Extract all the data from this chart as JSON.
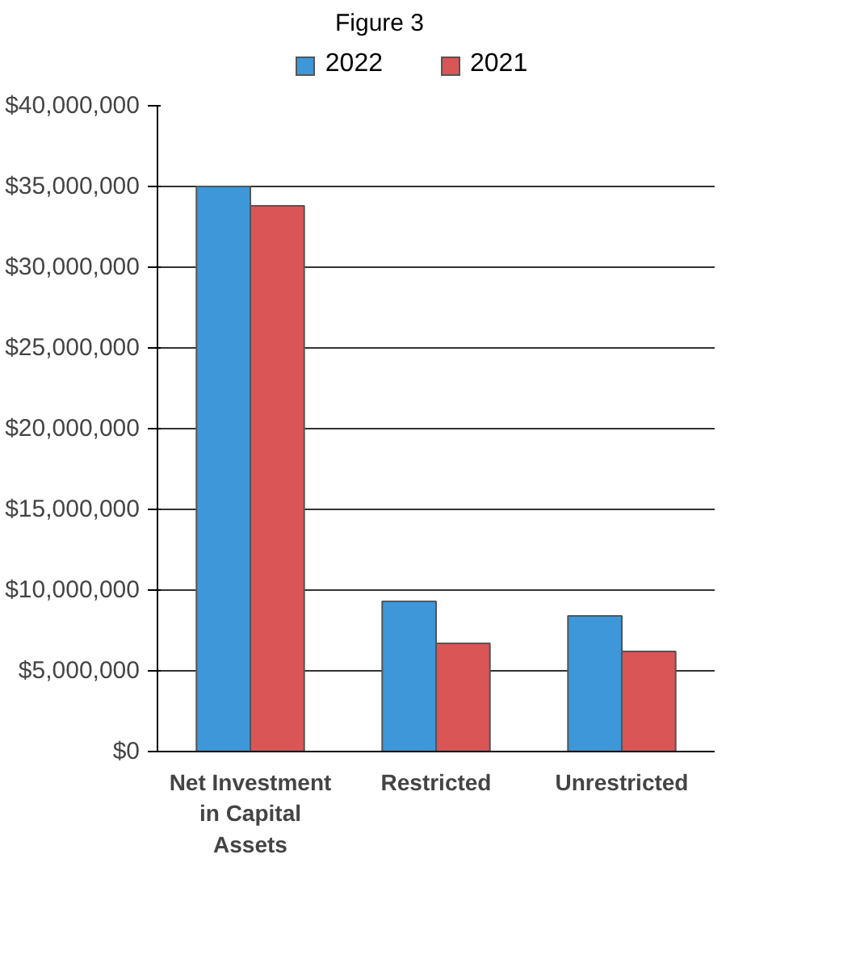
{
  "chart_data": {
    "type": "bar",
    "title": "Figure 3",
    "categories": [
      "Net Investment in Capital Assets",
      "Restricted",
      "Unrestricted"
    ],
    "series": [
      {
        "name": "2022",
        "color": "#3d97d8",
        "values": [
          35000000,
          9300000,
          8400000
        ]
      },
      {
        "name": "2021",
        "color": "#d95556",
        "values": [
          33800000,
          6700000,
          6200000
        ]
      }
    ],
    "ylim": [
      0,
      40000000
    ],
    "yticks": [
      {
        "value": 0,
        "label": "$0"
      },
      {
        "value": 5000000,
        "label": "$5,000,000"
      },
      {
        "value": 10000000,
        "label": "$10,000,000"
      },
      {
        "value": 15000000,
        "label": "$15,000,000"
      },
      {
        "value": 20000000,
        "label": "$20,000,000"
      },
      {
        "value": 25000000,
        "label": "$25,000,000"
      },
      {
        "value": 30000000,
        "label": "$30,000,000"
      },
      {
        "value": 35000000,
        "label": "$35,000,000"
      },
      {
        "value": 40000000,
        "label": "$40,000,000"
      }
    ],
    "grid": "y",
    "legend": "top"
  }
}
